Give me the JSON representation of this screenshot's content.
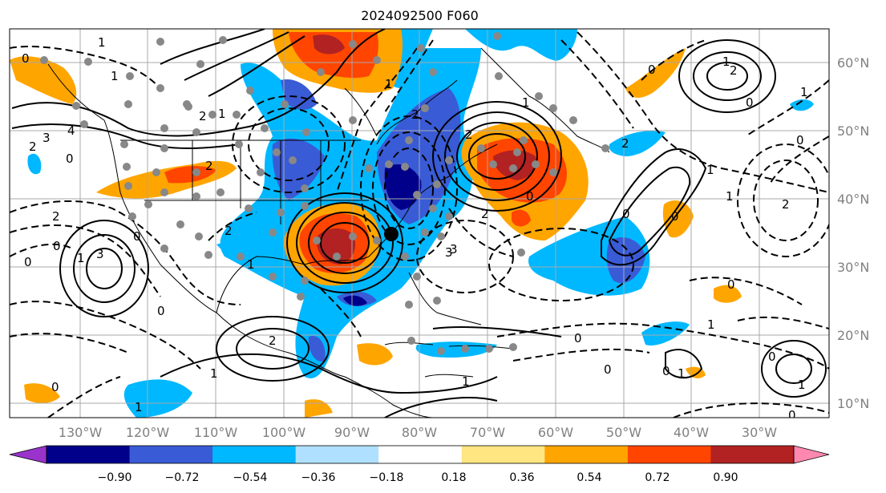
{
  "title": "2024092500 F060",
  "lon_ticks": [
    "130°W",
    "120°W",
    "110°W",
    "100°W",
    "90°W",
    "80°W",
    "70°W",
    "60°W",
    "50°W",
    "40°W",
    "30°W"
  ],
  "lat_ticks": [
    "60°N",
    "50°N",
    "40°N",
    "30°N",
    "20°N",
    "10°N"
  ],
  "colorbar": {
    "ticks": [
      "−0.90",
      "−0.72",
      "−0.54",
      "−0.36",
      "−0.18",
      "0.18",
      "0.36",
      "0.54",
      "0.72",
      "0.90"
    ],
    "under_color": "#9933cc",
    "over_color": "#ff88b0",
    "colors": [
      "#9933cc",
      "#00008b",
      "#3a5bd6",
      "#00b8ff",
      "#b0e0ff",
      "#ffffff",
      "#ffe680",
      "#ffa500",
      "#ff4500",
      "#b22222",
      "#ff88b0"
    ]
  },
  "contour_labels": [
    "0",
    "1",
    "2",
    "3",
    "4",
    "0",
    "1",
    "2",
    "1",
    "2",
    "0",
    "0",
    "1",
    "2",
    "1",
    "0",
    "1",
    "2",
    "3",
    "2",
    "0",
    "1",
    "2",
    "0",
    "1",
    "1",
    "2",
    "0",
    "1",
    "0",
    "0",
    "1",
    "2",
    "0",
    "1",
    "0",
    "0",
    "3",
    "2",
    "1",
    "0",
    "0",
    "0",
    "1",
    "0",
    "1",
    "0",
    "2",
    "3",
    "2",
    "1",
    "0",
    "1"
  ],
  "marker": "black-dot"
}
